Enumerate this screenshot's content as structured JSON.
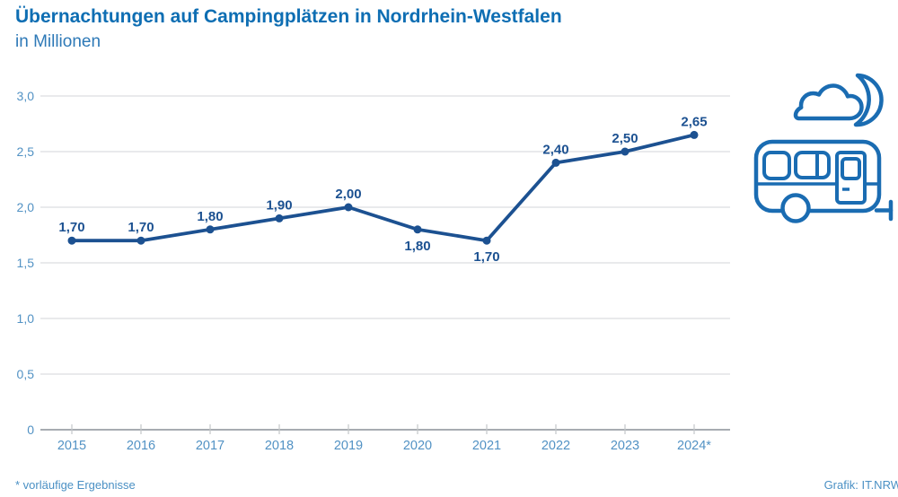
{
  "chart_data": {
    "type": "line",
    "title": "Übernachtungen auf Campingplätzen in Nordrhein-Westfalen",
    "subtitle": "in Millionen",
    "categories": [
      "2015",
      "2016",
      "2017",
      "2018",
      "2019",
      "2020",
      "2021",
      "2022",
      "2023",
      "2024*"
    ],
    "values": [
      1.7,
      1.7,
      1.8,
      1.9,
      2.0,
      1.8,
      1.7,
      2.4,
      2.5,
      2.65
    ],
    "point_labels": [
      "1,70",
      "1,70",
      "1,80",
      "1,90",
      "2,00",
      "1,80",
      "1,70",
      "2,40",
      "2,50",
      "2,65"
    ],
    "label_positions": [
      "above",
      "above",
      "above",
      "above",
      "above",
      "below",
      "below",
      "above",
      "above",
      "above"
    ],
    "y_tick_labels": [
      "3,0",
      "2,5",
      "2,0",
      "1,5",
      "1,0",
      "0,5",
      "0"
    ],
    "y_tick_values": [
      3.0,
      2.5,
      2.0,
      1.5,
      1.0,
      0.5,
      0
    ],
    "ylim": [
      0,
      3.0
    ],
    "xlabel": "",
    "ylabel": "in Millionen",
    "grid": true,
    "legend": "none",
    "colors": {
      "line": "#1c5191",
      "marker": "#1c5191",
      "data_label": "#1c5191",
      "tick_label": "#5292c4",
      "gridline": "#dcdee0",
      "axis_line": "#a7acb1",
      "tick_mark": "#c3c6c9"
    }
  },
  "footer": {
    "note": "* vorläufige Ergebnisse",
    "credit": "Grafik: IT.NRW"
  },
  "icon": {
    "name": "caravan-with-cloud-and-moon",
    "color": "#1a6cb2"
  }
}
